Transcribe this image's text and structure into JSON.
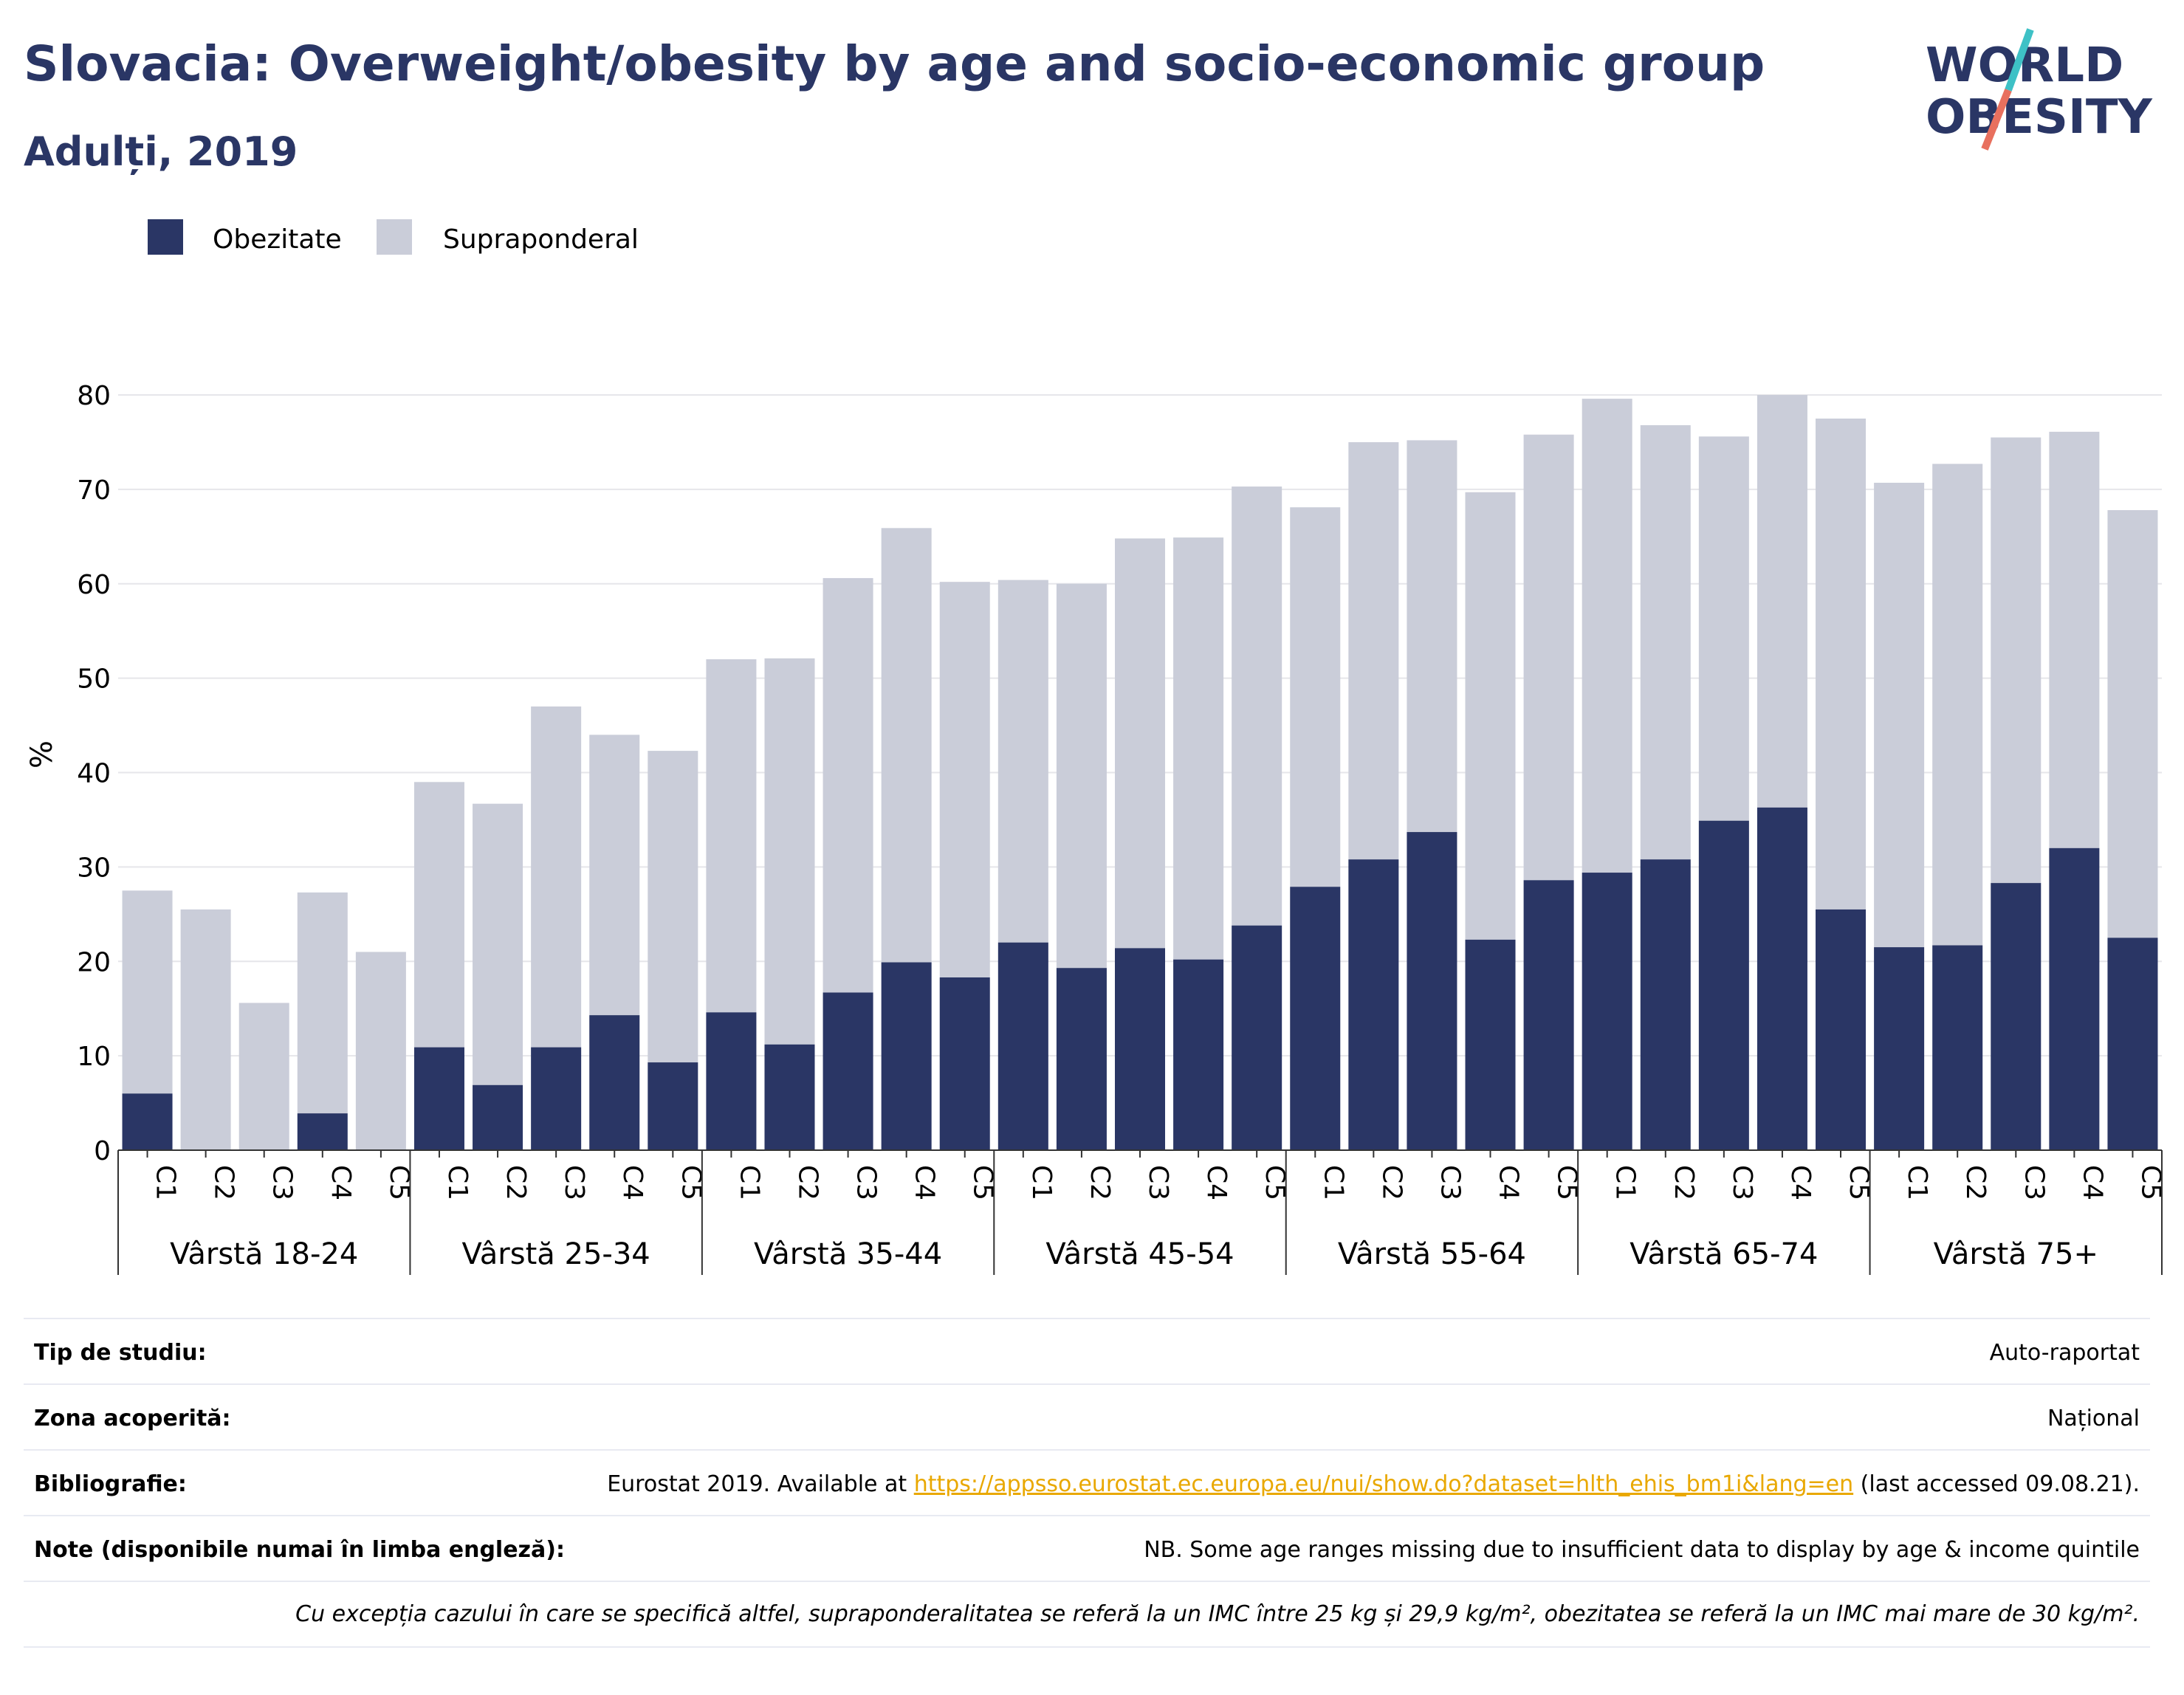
{
  "header": {
    "title": "Slovacia: Overweight/obesity by age and socio-economic group",
    "subtitle": "Adulți, 2019",
    "logo_text_1": "WORLD",
    "logo_text_2": "OBESITY"
  },
  "colors": {
    "obesity": "#2a3665",
    "overweight": "#cacdd9",
    "title": "#2a3665",
    "link": "#e9a800",
    "logo_teal": "#3ec1c6",
    "logo_red": "#e8705e"
  },
  "chart_data": {
    "type": "bar",
    "stacked": true,
    "ylabel": "%",
    "ylim": [
      0,
      80
    ],
    "yticks": [
      0,
      10,
      20,
      30,
      40,
      50,
      60,
      70,
      80
    ],
    "grid": true,
    "legend_position": "top-left",
    "legend": [
      "Obezitate",
      "Supraponderal"
    ],
    "groups": [
      {
        "label": "Vârstă 18-24",
        "categories": [
          "C1",
          "C2",
          "C3",
          "C4",
          "C5"
        ],
        "obezitate": [
          6.0,
          0,
          0,
          3.9,
          0
        ],
        "total": [
          27.5,
          25.5,
          15.6,
          27.3,
          21.0
        ]
      },
      {
        "label": "Vârstă 25-34",
        "categories": [
          "C1",
          "C2",
          "C3",
          "C4",
          "C5"
        ],
        "obezitate": [
          10.9,
          6.9,
          10.9,
          14.3,
          9.3
        ],
        "total": [
          39.0,
          36.7,
          47.0,
          44.0,
          42.3
        ]
      },
      {
        "label": "Vârstă 35-44",
        "categories": [
          "C1",
          "C2",
          "C3",
          "C4",
          "C5"
        ],
        "obezitate": [
          14.6,
          11.2,
          16.7,
          19.9,
          18.3
        ],
        "total": [
          52.0,
          52.1,
          60.6,
          65.9,
          60.2
        ]
      },
      {
        "label": "Vârstă 45-54",
        "categories": [
          "C1",
          "C2",
          "C3",
          "C4",
          "C5"
        ],
        "obezitate": [
          22.0,
          19.3,
          21.4,
          20.2,
          23.8
        ],
        "total": [
          60.4,
          60.0,
          64.8,
          64.9,
          70.3
        ]
      },
      {
        "label": "Vârstă 55-64",
        "categories": [
          "C1",
          "C2",
          "C3",
          "C4",
          "C5"
        ],
        "obezitate": [
          27.9,
          30.8,
          33.7,
          22.3,
          28.6
        ],
        "total": [
          68.1,
          75.0,
          75.2,
          69.7,
          75.8
        ]
      },
      {
        "label": "Vârstă 65-74",
        "categories": [
          "C1",
          "C2",
          "C3",
          "C4",
          "C5"
        ],
        "obezitate": [
          29.4,
          30.8,
          34.9,
          36.3,
          25.5
        ],
        "total": [
          79.6,
          76.8,
          75.6,
          80.0,
          77.5
        ]
      },
      {
        "label": "Vârstă 75+",
        "categories": [
          "C1",
          "C2",
          "C3",
          "C4",
          "C5"
        ],
        "obezitate": [
          21.5,
          21.7,
          28.3,
          32.0,
          22.5
        ],
        "total": [
          70.7,
          72.7,
          75.5,
          76.1,
          67.8
        ]
      }
    ]
  },
  "info": {
    "tip_label": "Tip de studiu:",
    "tip_value": "Auto-raportat",
    "zona_label": "Zona acoperită:",
    "zona_value": "Național",
    "biblio_label": "Bibliografie:",
    "biblio_prefix": "Eurostat 2019. Available at ",
    "biblio_link": "https://appsso.eurostat.ec.europa.eu/nui/show.do?dataset=hlth_ehis_bm1i&lang=en",
    "biblio_suffix": " (last accessed 09.08.21).",
    "note_label": "Note (disponibile numai în limba engleză):",
    "note_value": "NB. Some age ranges missing due to insufficient data to display by age & income quintile",
    "footnote": "Cu excepția cazului în care se specifică altfel, supraponderalitatea se referă la un IMC între 25 kg și 29,9 kg/m², obezitatea se referă la un IMC mai mare de 30 kg/m²."
  }
}
